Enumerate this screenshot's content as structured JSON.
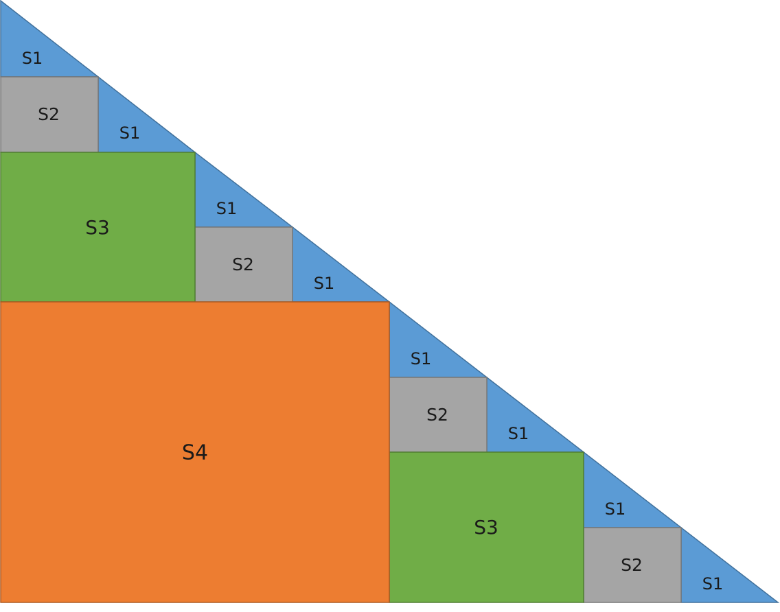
{
  "labels": {
    "s1": "S1",
    "s2": "S2",
    "s3": "S3",
    "s4": "S4"
  },
  "colors": {
    "s1_fill": "#5b9bd5",
    "s1_stroke": "#41719c",
    "s2_fill": "#a5a5a5",
    "s2_stroke": "#787878",
    "s3_fill": "#70ad47",
    "s3_stroke": "#507e32",
    "s4_fill": "#ed7d31",
    "s4_stroke": "#ae5a21"
  }
}
